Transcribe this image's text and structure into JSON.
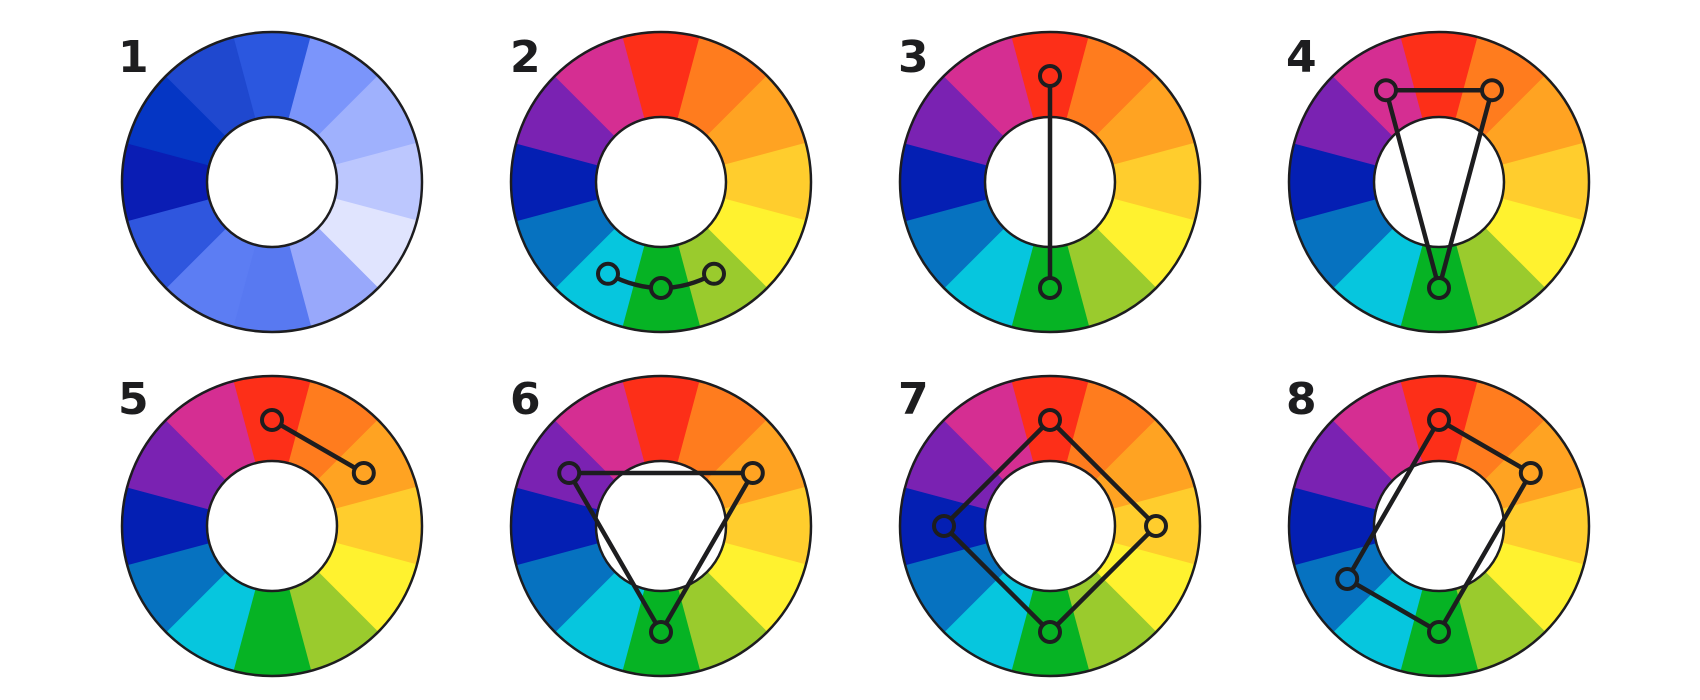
{
  "palette": {
    "hue_order": [
      "red",
      "red-orange",
      "orange",
      "yellow-orange",
      "yellow",
      "yellow-green",
      "green",
      "cyan",
      "blue",
      "navy",
      "violet",
      "magenta"
    ],
    "hue_colors": [
      "#fd2f18",
      "#ff7c1e",
      "#ffa322",
      "#ffcd2d",
      "#fff22f",
      "#9acb2d",
      "#06b324",
      "#06c6de",
      "#0672c0",
      "#041fb3",
      "#7a22b2",
      "#d52e92"
    ],
    "mono_colors": [
      "#2b57df",
      "#7b95fb",
      "#9fb1fd",
      "#bcc7fe",
      "#e0e4fe",
      "#98a8fb",
      "#5879f1",
      "#5c7df3",
      "#2f56de",
      "#0a1db4",
      "#0536c4",
      "#1f48cf"
    ],
    "outline": "#1d1d1f",
    "hub": "#ffffff"
  },
  "wheels": [
    {
      "label": "1",
      "scheme": "monochromatic",
      "shape": "none",
      "markers": []
    },
    {
      "label": "2",
      "scheme": "analogous",
      "shape": "arc",
      "markers": [
        "yellow-green",
        "green",
        "cyan"
      ]
    },
    {
      "label": "3",
      "scheme": "complementary",
      "shape": "line",
      "markers": [
        "red",
        "green"
      ]
    },
    {
      "label": "4",
      "scheme": "split-complementary",
      "shape": "polygon",
      "markers": [
        "magenta",
        "green",
        "red-orange"
      ]
    },
    {
      "label": "5",
      "scheme": "double",
      "shape": "line",
      "markers": [
        "red",
        "orange"
      ]
    },
    {
      "label": "6",
      "scheme": "triadic",
      "shape": "polygon",
      "markers": [
        "violet",
        "green",
        "orange"
      ]
    },
    {
      "label": "7",
      "scheme": "square",
      "shape": "polygon",
      "markers": [
        "red",
        "yellow-orange",
        "green",
        "navy"
      ]
    },
    {
      "label": "8",
      "scheme": "rectangle",
      "shape": "polygon",
      "markers": [
        "red",
        "orange",
        "green",
        "blue"
      ]
    }
  ]
}
